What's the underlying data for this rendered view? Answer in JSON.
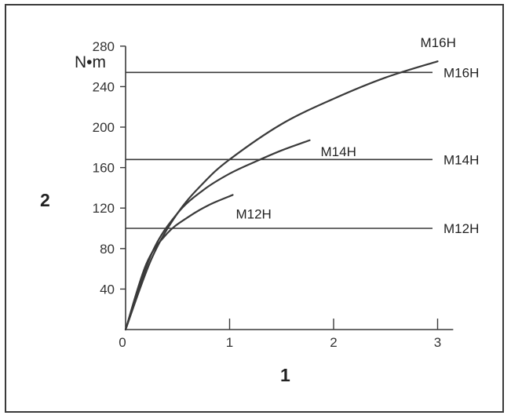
{
  "chart_data": {
    "type": "line",
    "unit": "N•m",
    "xlabel": "1",
    "ylabel": "2",
    "xlim": [
      0,
      3.15
    ],
    "ylim": [
      0,
      280
    ],
    "x_ticks": [
      "0",
      "1",
      "2",
      "3"
    ],
    "y_ticks": [
      "40",
      "80",
      "120",
      "160",
      "200",
      "240",
      "280"
    ],
    "grid": false,
    "colors": {
      "line": "#3a3a3a",
      "text": "#222222"
    },
    "series": [
      {
        "name": "M16H",
        "x": [
          0,
          0.25,
          0.5,
          0.75,
          1,
          1.5,
          2,
          2.5,
          3
        ],
        "y": [
          0,
          70,
          115,
          145,
          168,
          203,
          228,
          249,
          265
        ]
      },
      {
        "name": "M14H",
        "x": [
          0,
          0.25,
          0.5,
          0.75,
          1,
          1.25,
          1.5,
          1.77
        ],
        "y": [
          0,
          75,
          115,
          138,
          154,
          166,
          177,
          187
        ]
      },
      {
        "name": "M12H",
        "x": [
          0,
          0.2,
          0.4,
          0.6,
          0.8,
          1.03
        ],
        "y": [
          0,
          65,
          95,
          111,
          123,
          133
        ]
      }
    ],
    "reference_lines": [
      {
        "name": "M16H",
        "y": 254
      },
      {
        "name": "M14H",
        "y": 168
      },
      {
        "name": "M12H",
        "y": 100
      }
    ]
  }
}
